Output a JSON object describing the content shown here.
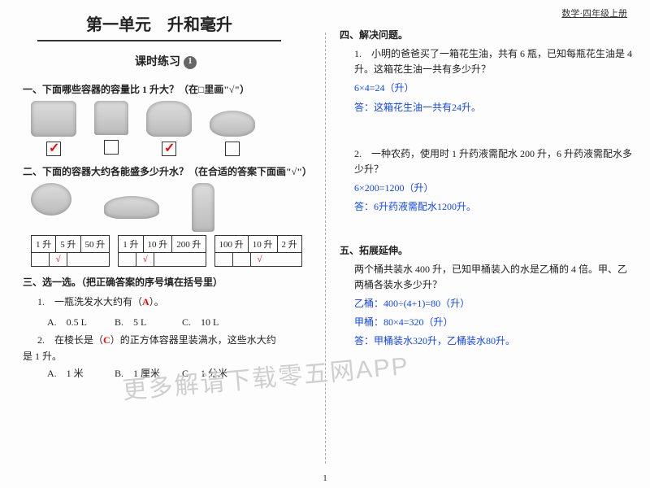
{
  "header": {
    "book": "数学·四年级上册"
  },
  "unit": {
    "title": "第一单元　升和毫升",
    "lesson": "课时练习",
    "num": "1"
  },
  "sec1": {
    "h": "一、下面哪些容器的容量比 1 升大？（在□里画\"√\"）",
    "items": [
      {
        "name": "rice-cooker",
        "shape": "ph",
        "checked": true
      },
      {
        "name": "cup",
        "shape": "ph cup",
        "checked": false
      },
      {
        "name": "kettle",
        "shape": "ph kettle",
        "checked": true
      },
      {
        "name": "bowl",
        "shape": "ph bowl",
        "checked": false
      }
    ]
  },
  "sec2": {
    "h": "二、下面的容器大约各能盛多少升水？（在合适的答案下面画\"√\"）",
    "items": [
      {
        "name": "teapot",
        "shape": "ph teapot",
        "opts": [
          "1 升",
          "5 升",
          "50 升"
        ],
        "tick": 1
      },
      {
        "name": "basin",
        "shape": "ph basin",
        "opts": [
          "1 升",
          "10 升",
          "200 升"
        ],
        "tick": 1
      },
      {
        "name": "thermos",
        "shape": "ph thermos",
        "opts": [
          "100 升",
          "10 升",
          "2 升"
        ],
        "tick": 2
      }
    ]
  },
  "sec3": {
    "h": "三、选一选。（把正确答案的序号填在括号里）",
    "q1": {
      "stem_a": "1.　一瓶洗发水大约有（",
      "ans": "A",
      "stem_b": "）。",
      "A": "A.　0.5 L",
      "B": "B.　5 L",
      "C": "C.　10 L"
    },
    "q2": {
      "stem_a": "2.　在棱长是（",
      "ans": "C",
      "stem_b": "）的正方体容器里装满水，这些水大约",
      "tail": "是 1 升。",
      "A": "A.　1 米",
      "B": "B.　1 厘米",
      "C": "C.　1 分米"
    }
  },
  "sec4": {
    "h": "四、解决问题。",
    "p1": {
      "text": "1.　小明的爸爸买了一箱花生油，共有 6 瓶，已知每瓶花生油是 4 升。这箱花生油一共有多少升？",
      "work": "6×4=24（升）",
      "ans": "答：这箱花生油一共有24升。"
    },
    "p2": {
      "text": "2.　一种农药，使用时 1 升药液需配水 200 升，6 升药液需配水多少升？",
      "work": "6×200=1200（升）",
      "ans": "答：6升药液需配水1200升。"
    }
  },
  "sec5": {
    "h": "五、拓展延伸。",
    "text": "两个桶共装水 400 升，已知甲桶装入的水是乙桶的 4 倍。甲、乙两桶各装水多少升？",
    "l1": "乙桶：400÷(4+1)=80（升）",
    "l2": "甲桶：80×4=320（升）",
    "l3": "答：甲桶装水320升，乙桶装水80升。"
  },
  "page": "1",
  "wm1": "更多解请下载零五网APP"
}
